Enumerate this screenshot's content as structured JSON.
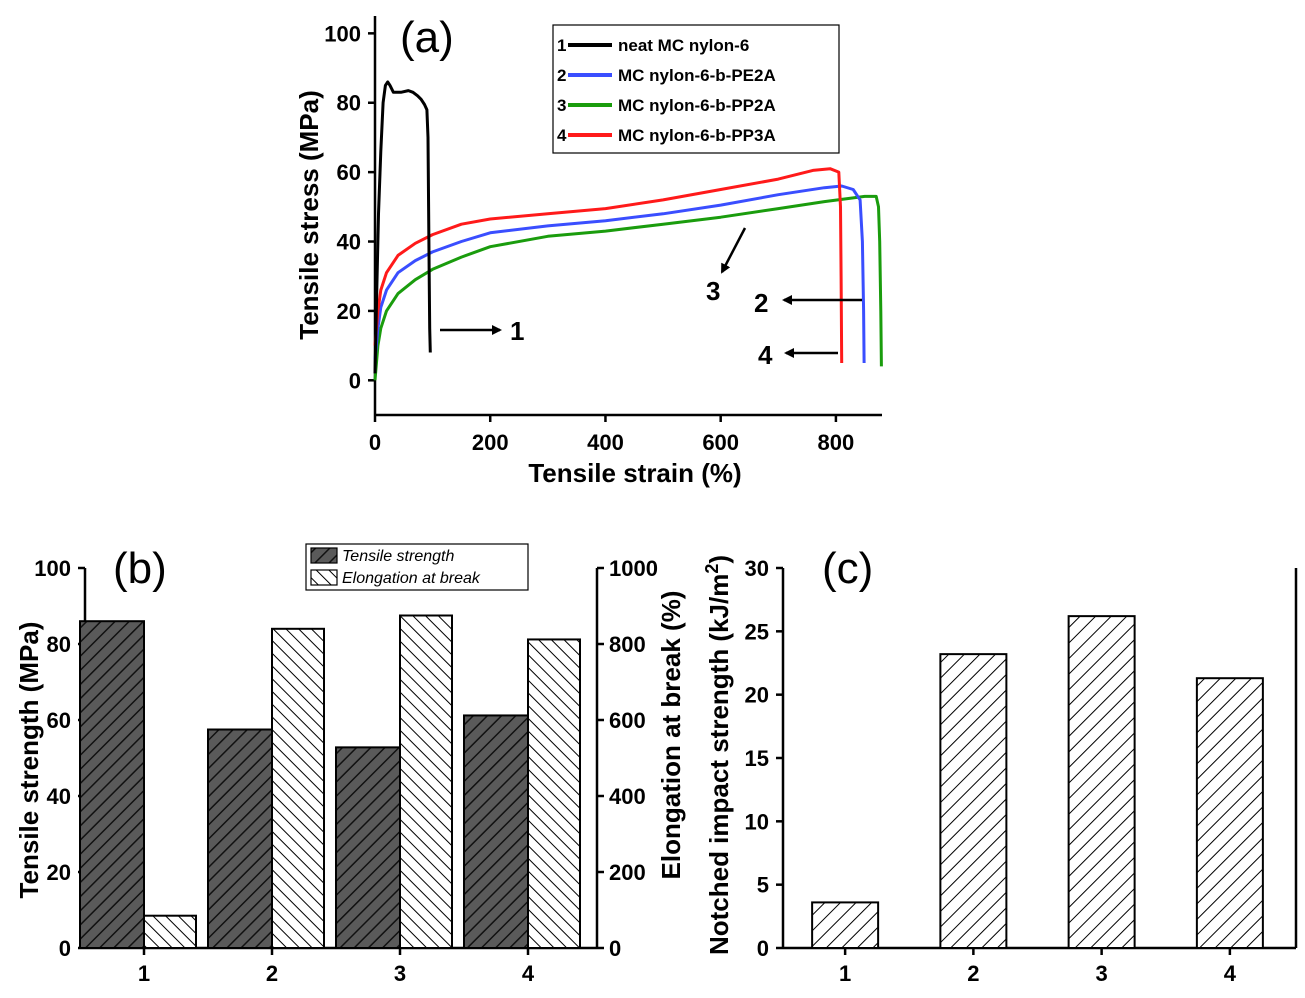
{
  "chart_data": [
    {
      "panel": "(a)",
      "type": "line",
      "title": "",
      "xlabel": "Tensile strain (%)",
      "ylabel": "Tensile stress (MPa)",
      "xlim": [
        0,
        880
      ],
      "ylim": [
        -10,
        105
      ],
      "xticks": [
        "0",
        "200",
        "400",
        "600",
        "800"
      ],
      "yticks": [
        "0",
        "20",
        "40",
        "60",
        "80",
        "100"
      ],
      "series": [
        {
          "id": "1",
          "name": "neat MC nylon-6",
          "color": "#000000",
          "points": [
            [
              0,
              2
            ],
            [
              3,
              25
            ],
            [
              6,
              48
            ],
            [
              10,
              66
            ],
            [
              14,
              80
            ],
            [
              18,
              85
            ],
            [
              22,
              86
            ],
            [
              26,
              85
            ],
            [
              32,
              83
            ],
            [
              45,
              83
            ],
            [
              58,
              83.5
            ],
            [
              66,
              83
            ],
            [
              74,
              82
            ],
            [
              80,
              81
            ],
            [
              86,
              79.5
            ],
            [
              90,
              78
            ],
            [
              92,
              70
            ],
            [
              93,
              50
            ],
            [
              94,
              30
            ],
            [
              95,
              15
            ],
            [
              96,
              8
            ]
          ],
          "annotation": "1",
          "annotation_arrow_from_x": 115,
          "annotation_x": 245,
          "annotation_y": 15
        },
        {
          "id": "2",
          "name": "MC nylon-6-b-PE2A",
          "color": "#3a4eff",
          "points": [
            [
              0,
              6
            ],
            [
              5,
              15
            ],
            [
              10,
              21
            ],
            [
              20,
              26
            ],
            [
              40,
              31
            ],
            [
              70,
              34.5
            ],
            [
              100,
              37
            ],
            [
              150,
              40
            ],
            [
              200,
              42.5
            ],
            [
              300,
              44.5
            ],
            [
              400,
              46
            ],
            [
              500,
              48
            ],
            [
              600,
              50.5
            ],
            [
              700,
              53.5
            ],
            [
              780,
              55.5
            ],
            [
              810,
              56
            ],
            [
              830,
              55
            ],
            [
              842,
              52
            ],
            [
              846,
              40
            ],
            [
              848,
              20
            ],
            [
              849,
              5
            ]
          ],
          "annotation": "2",
          "annotation_x": 720,
          "annotation_y": 22.5
        },
        {
          "id": "3",
          "name": "MC nylon-6-b-PP2A",
          "color": "#1a9c0d",
          "points": [
            [
              0,
              0
            ],
            [
              5,
              10
            ],
            [
              10,
              15
            ],
            [
              20,
              20
            ],
            [
              40,
              25
            ],
            [
              70,
              29
            ],
            [
              100,
              32
            ],
            [
              150,
              35.5
            ],
            [
              200,
              38.5
            ],
            [
              300,
              41.5
            ],
            [
              400,
              43
            ],
            [
              500,
              45
            ],
            [
              600,
              47
            ],
            [
              700,
              49.5
            ],
            [
              780,
              51.5
            ],
            [
              850,
              53
            ],
            [
              870,
              53
            ],
            [
              874,
              50
            ],
            [
              876,
              40
            ],
            [
              878,
              20
            ],
            [
              879,
              4
            ]
          ],
          "annotation": "3",
          "annotation_x": 590,
          "annotation_y": 25
        },
        {
          "id": "4",
          "name": "MC nylon-6-b-PP3A",
          "color": "#ff1a1a",
          "points": [
            [
              0,
              10
            ],
            [
              5,
              20
            ],
            [
              10,
              26
            ],
            [
              20,
              31
            ],
            [
              40,
              36
            ],
            [
              70,
              39.5
            ],
            [
              100,
              42
            ],
            [
              150,
              45
            ],
            [
              200,
              46.5
            ],
            [
              300,
              48
            ],
            [
              400,
              49.5
            ],
            [
              500,
              52
            ],
            [
              600,
              55
            ],
            [
              700,
              58
            ],
            [
              760,
              60.5
            ],
            [
              790,
              61
            ],
            [
              805,
              60
            ],
            [
              808,
              50
            ],
            [
              809,
              30
            ],
            [
              810,
              5
            ]
          ],
          "annotation": "4",
          "annotation_x": 720,
          "annotation_y": 8
        }
      ]
    },
    {
      "panel": "(b)",
      "type": "bar",
      "title": "",
      "xlabel": "",
      "categories": [
        "1",
        "2",
        "3",
        "4"
      ],
      "ylabel": "Tensile strength (MPa)",
      "y2label": "Elongation at break (%)",
      "ylim": [
        0,
        100
      ],
      "y2lim": [
        0,
        1000
      ],
      "yticks": [
        "0",
        "20",
        "40",
        "60",
        "80",
        "100"
      ],
      "y2ticks": [
        "0",
        "200",
        "400",
        "600",
        "800",
        "1000"
      ],
      "series": [
        {
          "name": "Tensile strength",
          "axis": "left",
          "values": [
            86,
            57.5,
            52.8,
            61.2
          ]
        },
        {
          "name": "Elongation at break",
          "axis": "right",
          "values": [
            85,
            840,
            875,
            812
          ]
        }
      ]
    },
    {
      "panel": "(c)",
      "type": "bar",
      "title": "",
      "xlabel": "",
      "categories": [
        "1",
        "2",
        "3",
        "4"
      ],
      "ylabel": "Notched impact strength (kJ/m",
      "ylabel_superscript": "2",
      "ylabel_suffix": ")",
      "ylim": [
        0,
        30
      ],
      "yticks": [
        "0",
        "5",
        "10",
        "15",
        "20",
        "25",
        "30"
      ],
      "values": [
        3.6,
        23.2,
        26.2,
        21.3
      ]
    }
  ]
}
